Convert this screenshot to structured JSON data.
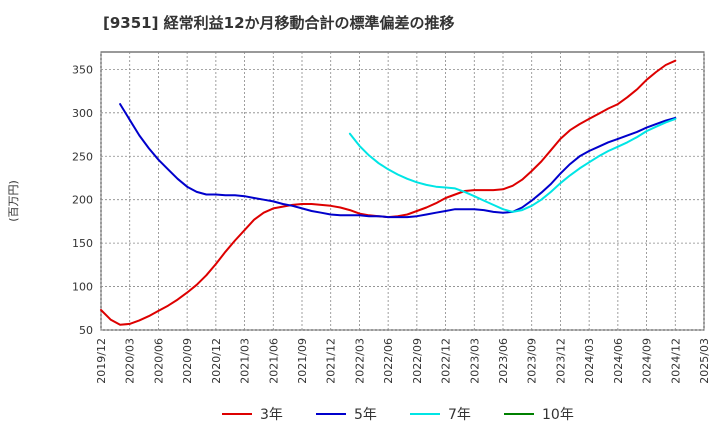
{
  "chart_data": {
    "type": "line",
    "title": "[9351]  経常利益12か月移動合計の標準偏差の推移",
    "ylabel": "(百万円)",
    "xlabel": "",
    "ylim": [
      50,
      370
    ],
    "yticks": [
      50,
      100,
      150,
      200,
      250,
      300,
      350
    ],
    "xticks": [
      "2019/12",
      "2020/03",
      "2020/06",
      "2020/09",
      "2020/12",
      "2021/03",
      "2021/06",
      "2021/09",
      "2021/12",
      "2022/03",
      "2022/06",
      "2022/09",
      "2022/12",
      "2023/03",
      "2023/06",
      "2023/09",
      "2023/12",
      "2024/03",
      "2024/06",
      "2024/09",
      "2024/12",
      "2025/03"
    ],
    "grid": true,
    "legend_position": "bottom",
    "series": [
      {
        "name": "3年",
        "color": "#dd0000",
        "points": [
          [
            "2019/12",
            73
          ],
          [
            "2020/01",
            62
          ],
          [
            "2020/02",
            56
          ],
          [
            "2020/03",
            57
          ],
          [
            "2020/04",
            61
          ],
          [
            "2020/05",
            66
          ],
          [
            "2020/06",
            72
          ],
          [
            "2020/07",
            78
          ],
          [
            "2020/08",
            85
          ],
          [
            "2020/09",
            93
          ],
          [
            "2020/10",
            102
          ],
          [
            "2020/11",
            113
          ],
          [
            "2020/12",
            126
          ],
          [
            "2021/01",
            140
          ],
          [
            "2021/02",
            153
          ],
          [
            "2021/03",
            165
          ],
          [
            "2021/04",
            177
          ],
          [
            "2021/05",
            185
          ],
          [
            "2021/06",
            190
          ],
          [
            "2021/07",
            192
          ],
          [
            "2021/08",
            194
          ],
          [
            "2021/09",
            195
          ],
          [
            "2021/10",
            195
          ],
          [
            "2021/11",
            194
          ],
          [
            "2021/12",
            193
          ],
          [
            "2022/01",
            191
          ],
          [
            "2022/02",
            188
          ],
          [
            "2022/03",
            184
          ],
          [
            "2022/04",
            182
          ],
          [
            "2022/05",
            181
          ],
          [
            "2022/06",
            180
          ],
          [
            "2022/07",
            181
          ],
          [
            "2022/08",
            183
          ],
          [
            "2022/09",
            187
          ],
          [
            "2022/10",
            191
          ],
          [
            "2022/11",
            196
          ],
          [
            "2022/12",
            202
          ],
          [
            "2023/01",
            206
          ],
          [
            "2023/02",
            210
          ],
          [
            "2023/03",
            211
          ],
          [
            "2023/04",
            211
          ],
          [
            "2023/05",
            211
          ],
          [
            "2023/06",
            212
          ],
          [
            "2023/07",
            216
          ],
          [
            "2023/08",
            223
          ],
          [
            "2023/09",
            233
          ],
          [
            "2023/10",
            244
          ],
          [
            "2023/11",
            257
          ],
          [
            "2023/12",
            270
          ],
          [
            "2024/01",
            280
          ],
          [
            "2024/02",
            287
          ],
          [
            "2024/03",
            293
          ],
          [
            "2024/04",
            299
          ],
          [
            "2024/05",
            305
          ],
          [
            "2024/06",
            310
          ],
          [
            "2024/07",
            318
          ],
          [
            "2024/08",
            327
          ],
          [
            "2024/09",
            338
          ],
          [
            "2024/10",
            347
          ],
          [
            "2024/11",
            355
          ],
          [
            "2024/12",
            360
          ]
        ]
      },
      {
        "name": "5年",
        "color": "#0000cc",
        "points": [
          [
            "2020/02",
            310
          ],
          [
            "2020/03",
            292
          ],
          [
            "2020/04",
            274
          ],
          [
            "2020/05",
            259
          ],
          [
            "2020/06",
            246
          ],
          [
            "2020/07",
            235
          ],
          [
            "2020/08",
            224
          ],
          [
            "2020/09",
            215
          ],
          [
            "2020/10",
            209
          ],
          [
            "2020/11",
            206
          ],
          [
            "2020/12",
            206
          ],
          [
            "2021/01",
            205
          ],
          [
            "2021/02",
            205
          ],
          [
            "2021/03",
            204
          ],
          [
            "2021/04",
            202
          ],
          [
            "2021/05",
            200
          ],
          [
            "2021/06",
            198
          ],
          [
            "2021/07",
            195
          ],
          [
            "2021/08",
            193
          ],
          [
            "2021/09",
            190
          ],
          [
            "2021/10",
            187
          ],
          [
            "2021/11",
            185
          ],
          [
            "2021/12",
            183
          ],
          [
            "2022/01",
            182
          ],
          [
            "2022/02",
            182
          ],
          [
            "2022/03",
            182
          ],
          [
            "2022/04",
            181
          ],
          [
            "2022/05",
            181
          ],
          [
            "2022/06",
            180
          ],
          [
            "2022/07",
            180
          ],
          [
            "2022/08",
            180
          ],
          [
            "2022/09",
            181
          ],
          [
            "2022/10",
            183
          ],
          [
            "2022/11",
            185
          ],
          [
            "2022/12",
            187
          ],
          [
            "2023/01",
            189
          ],
          [
            "2023/02",
            189
          ],
          [
            "2023/03",
            189
          ],
          [
            "2023/04",
            188
          ],
          [
            "2023/05",
            186
          ],
          [
            "2023/06",
            185
          ],
          [
            "2023/07",
            186
          ],
          [
            "2023/08",
            191
          ],
          [
            "2023/09",
            199
          ],
          [
            "2023/10",
            208
          ],
          [
            "2023/11",
            218
          ],
          [
            "2023/12",
            230
          ],
          [
            "2024/01",
            241
          ],
          [
            "2024/02",
            250
          ],
          [
            "2024/03",
            256
          ],
          [
            "2024/04",
            261
          ],
          [
            "2024/05",
            266
          ],
          [
            "2024/06",
            270
          ],
          [
            "2024/07",
            274
          ],
          [
            "2024/08",
            278
          ],
          [
            "2024/09",
            283
          ],
          [
            "2024/10",
            287
          ],
          [
            "2024/11",
            291
          ],
          [
            "2024/12",
            294
          ]
        ]
      },
      {
        "name": "7年",
        "color": "#00e5e5",
        "points": [
          [
            "2022/02",
            276
          ],
          [
            "2022/03",
            262
          ],
          [
            "2022/04",
            251
          ],
          [
            "2022/05",
            242
          ],
          [
            "2022/06",
            235
          ],
          [
            "2022/07",
            229
          ],
          [
            "2022/08",
            224
          ],
          [
            "2022/09",
            220
          ],
          [
            "2022/10",
            217
          ],
          [
            "2022/11",
            215
          ],
          [
            "2022/12",
            214
          ],
          [
            "2023/01",
            213
          ],
          [
            "2023/02",
            209
          ],
          [
            "2023/03",
            204
          ],
          [
            "2023/04",
            199
          ],
          [
            "2023/05",
            194
          ],
          [
            "2023/06",
            189
          ],
          [
            "2023/07",
            186
          ],
          [
            "2023/08",
            188
          ],
          [
            "2023/09",
            193
          ],
          [
            "2023/10",
            200
          ],
          [
            "2023/11",
            209
          ],
          [
            "2023/12",
            219
          ],
          [
            "2024/01",
            228
          ],
          [
            "2024/02",
            236
          ],
          [
            "2024/03",
            243
          ],
          [
            "2024/04",
            250
          ],
          [
            "2024/05",
            256
          ],
          [
            "2024/06",
            261
          ],
          [
            "2024/07",
            266
          ],
          [
            "2024/08",
            272
          ],
          [
            "2024/09",
            279
          ],
          [
            "2024/10",
            284
          ],
          [
            "2024/11",
            289
          ],
          [
            "2024/12",
            293
          ]
        ]
      },
      {
        "name": "10年",
        "color": "#008000",
        "points": []
      }
    ]
  }
}
